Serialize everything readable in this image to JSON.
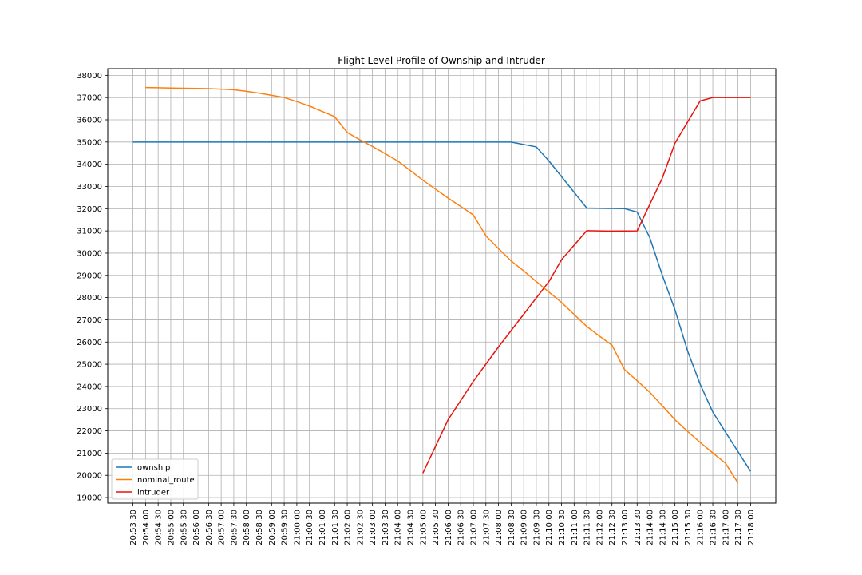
{
  "chart_data": {
    "type": "line",
    "title": "Flight Level Profile of Ownship and Intruder",
    "xlabel": "",
    "ylabel": "",
    "x_ticks": [
      "20:53:30",
      "20:54:00",
      "20:54:30",
      "20:55:00",
      "20:55:30",
      "20:56:00",
      "20:56:30",
      "20:57:00",
      "20:57:30",
      "20:58:00",
      "20:58:30",
      "20:59:00",
      "20:59:30",
      "21:00:00",
      "21:00:30",
      "21:01:00",
      "21:01:30",
      "21:02:00",
      "21:02:30",
      "21:03:00",
      "21:03:30",
      "21:04:00",
      "21:04:30",
      "21:05:00",
      "21:05:30",
      "21:06:00",
      "21:06:30",
      "21:07:00",
      "21:07:30",
      "21:08:00",
      "21:08:30",
      "21:09:00",
      "21:09:30",
      "21:10:00",
      "21:10:30",
      "21:11:00",
      "21:11:30",
      "21:12:00",
      "21:12:30",
      "21:13:00",
      "21:13:30",
      "21:14:00",
      "21:14:30",
      "21:15:00",
      "21:15:30",
      "21:16:00",
      "21:16:30",
      "21:17:00",
      "21:17:30",
      "21:18:00"
    ],
    "y_ticks": [
      19000,
      20000,
      21000,
      22000,
      23000,
      24000,
      25000,
      26000,
      27000,
      28000,
      29000,
      30000,
      31000,
      32000,
      33000,
      34000,
      35000,
      36000,
      37000,
      38000
    ],
    "ylim": [
      18750,
      38300
    ],
    "xlim": [
      "20:52:30",
      "21:19:00"
    ],
    "grid": true,
    "legend_position": "lower-left",
    "series": [
      {
        "name": "ownship",
        "color": "#1f77b4",
        "points": [
          [
            "20:53:30",
            35000
          ],
          [
            "21:08:30",
            35000
          ],
          [
            "21:09:30",
            34780
          ],
          [
            "21:10:00",
            34150
          ],
          [
            "21:11:30",
            32030
          ],
          [
            "21:12:30",
            32010
          ],
          [
            "21:13:00",
            32000
          ],
          [
            "21:13:30",
            31850
          ],
          [
            "21:14:00",
            30700
          ],
          [
            "21:14:30",
            29000
          ],
          [
            "21:15:00",
            27450
          ],
          [
            "21:15:30",
            25600
          ],
          [
            "21:16:00",
            24100
          ],
          [
            "21:16:30",
            22850
          ],
          [
            "21:17:00",
            21950
          ],
          [
            "21:18:00",
            20180
          ]
        ]
      },
      {
        "name": "nominal_route",
        "color": "#ff7f0e",
        "points": [
          [
            "20:54:00",
            37450
          ],
          [
            "20:54:30",
            37440
          ],
          [
            "20:55:00",
            37430
          ],
          [
            "20:55:30",
            37420
          ],
          [
            "20:56:00",
            37410
          ],
          [
            "20:56:30",
            37400
          ],
          [
            "20:57:00",
            37380
          ],
          [
            "20:57:30",
            37350
          ],
          [
            "20:58:00",
            37280
          ],
          [
            "20:58:30",
            37200
          ],
          [
            "20:59:00",
            37100
          ],
          [
            "20:59:30",
            37000
          ],
          [
            "21:00:00",
            36820
          ],
          [
            "21:00:30",
            36620
          ],
          [
            "21:01:00",
            36380
          ],
          [
            "21:01:30",
            36140
          ],
          [
            "21:02:00",
            35430
          ],
          [
            "21:02:30",
            35100
          ],
          [
            "21:03:00",
            34800
          ],
          [
            "21:03:30",
            34480
          ],
          [
            "21:04:00",
            34150
          ],
          [
            "21:04:30",
            33720
          ],
          [
            "21:05:00",
            33280
          ],
          [
            "21:05:30",
            32880
          ],
          [
            "21:06:00",
            32480
          ],
          [
            "21:06:30",
            32100
          ],
          [
            "21:07:00",
            31720
          ],
          [
            "21:07:30",
            30780
          ],
          [
            "21:08:00",
            30200
          ],
          [
            "21:08:30",
            29650
          ],
          [
            "21:09:00",
            29200
          ],
          [
            "21:09:30",
            28720
          ],
          [
            "21:10:00",
            28250
          ],
          [
            "21:10:30",
            27780
          ],
          [
            "21:11:00",
            27240
          ],
          [
            "21:11:30",
            26700
          ],
          [
            "21:12:00",
            26270
          ],
          [
            "21:12:30",
            25860
          ],
          [
            "21:13:00",
            24760
          ],
          [
            "21:13:30",
            24260
          ],
          [
            "21:14:00",
            23740
          ],
          [
            "21:14:30",
            23130
          ],
          [
            "21:15:00",
            22500
          ],
          [
            "21:15:30",
            21980
          ],
          [
            "21:16:00",
            21480
          ],
          [
            "21:16:30",
            21010
          ],
          [
            "21:17:00",
            20550
          ],
          [
            "21:17:30",
            19660
          ]
        ]
      },
      {
        "name": "intruder",
        "color": "#e8120c",
        "points": [
          [
            "21:05:00",
            20100
          ],
          [
            "21:06:00",
            22500
          ],
          [
            "21:07:00",
            24230
          ],
          [
            "21:08:00",
            25780
          ],
          [
            "21:09:00",
            27250
          ],
          [
            "21:10:00",
            28720
          ],
          [
            "21:10:30",
            29700
          ],
          [
            "21:11:30",
            31010
          ],
          [
            "21:12:30",
            30990
          ],
          [
            "21:13:30",
            31000
          ],
          [
            "21:14:30",
            33380
          ],
          [
            "21:15:00",
            34950
          ],
          [
            "21:16:00",
            36850
          ],
          [
            "21:16:30",
            37000
          ],
          [
            "21:18:00",
            37000
          ]
        ]
      }
    ]
  }
}
